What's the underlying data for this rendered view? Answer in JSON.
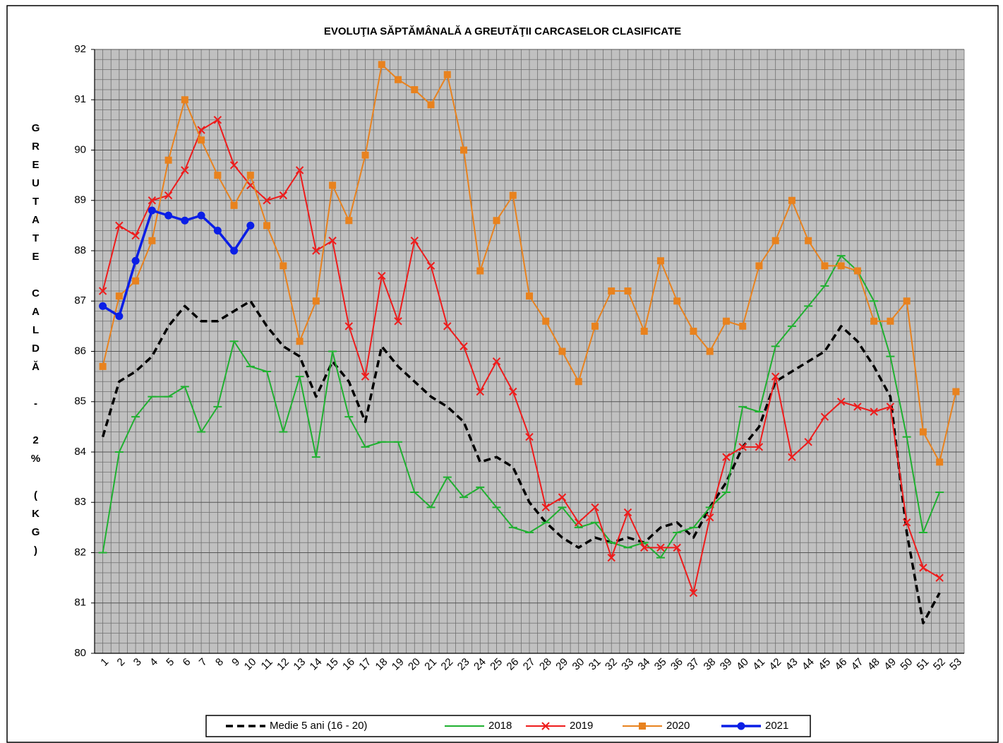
{
  "chart_data": {
    "type": "line",
    "title": "EVOLUŢIA SĂPTĂMÂNALĂ A GREUTĂŢII CARCASELOR CLASIFICATE",
    "y_label": "GREUTATE CALDĂ - 2% (KG)",
    "categories": [
      "1",
      "2",
      "3",
      "4",
      "5",
      "6",
      "7",
      "8",
      "9",
      "10",
      "11",
      "12",
      "13",
      "14",
      "15",
      "16",
      "17",
      "18",
      "19",
      "20",
      "21",
      "22",
      "23",
      "24",
      "25",
      "26",
      "27",
      "28",
      "29",
      "30",
      "31",
      "32",
      "33",
      "34",
      "35",
      "36",
      "37",
      "38",
      "39",
      "40",
      "41",
      "42",
      "43",
      "44",
      "45",
      "46",
      "47",
      "48",
      "49",
      "50",
      "51",
      "52",
      "53"
    ],
    "ylim": [
      80,
      92
    ],
    "yticks": [
      80,
      81,
      82,
      83,
      84,
      85,
      86,
      87,
      88,
      89,
      90,
      91,
      92
    ],
    "grid": true,
    "legend": "bottom",
    "series": [
      {
        "name": "Medie 5 ani (16 - 20)",
        "color": "#000000",
        "marker": "none",
        "dash": true,
        "values": [
          84.3,
          85.4,
          85.6,
          85.9,
          86.5,
          86.9,
          86.6,
          86.6,
          86.8,
          87.0,
          86.5,
          86.1,
          85.9,
          85.1,
          85.8,
          85.4,
          84.6,
          86.1,
          85.7,
          85.4,
          85.1,
          84.9,
          84.6,
          83.8,
          83.9,
          83.7,
          83.0,
          82.6,
          82.3,
          82.1,
          82.3,
          82.2,
          82.3,
          82.2,
          82.5,
          82.6,
          82.3,
          82.9,
          83.4,
          84.1,
          84.5,
          85.4,
          85.6,
          85.8,
          86.0,
          86.5,
          86.2,
          85.7,
          85.1,
          82.4,
          80.6,
          81.2,
          null
        ]
      },
      {
        "name": "2018",
        "color": "#1fb030",
        "marker": "dash",
        "dash": false,
        "values": [
          82.0,
          84.0,
          84.7,
          85.1,
          85.1,
          85.3,
          84.4,
          84.9,
          86.2,
          85.7,
          85.6,
          84.4,
          85.5,
          83.9,
          86.0,
          84.7,
          84.1,
          84.2,
          84.2,
          83.2,
          82.9,
          83.5,
          83.1,
          83.3,
          82.9,
          82.5,
          82.4,
          82.6,
          82.9,
          82.5,
          82.6,
          82.2,
          82.1,
          82.2,
          81.9,
          82.4,
          82.5,
          82.9,
          83.2,
          84.9,
          84.8,
          86.1,
          86.5,
          86.9,
          87.3,
          87.9,
          87.6,
          87.0,
          85.9,
          84.3,
          82.4,
          83.2,
          null
        ]
      },
      {
        "name": "2019",
        "color": "#ee1c1c",
        "marker": "x",
        "dash": false,
        "values": [
          87.2,
          88.5,
          88.3,
          89.0,
          89.1,
          89.6,
          90.4,
          90.6,
          89.7,
          89.3,
          89.0,
          89.1,
          89.6,
          88.0,
          88.2,
          86.5,
          85.5,
          87.5,
          86.6,
          88.2,
          87.7,
          86.5,
          86.1,
          85.2,
          85.8,
          85.2,
          84.3,
          82.9,
          83.1,
          82.6,
          82.9,
          81.9,
          82.8,
          82.1,
          82.1,
          82.1,
          81.2,
          82.7,
          83.9,
          84.1,
          84.1,
          85.5,
          83.9,
          84.2,
          84.7,
          85.0,
          84.9,
          84.8,
          84.9,
          82.6,
          81.7,
          81.5,
          null
        ]
      },
      {
        "name": "2020",
        "color": "#e8821e",
        "marker": "square",
        "dash": false,
        "values": [
          85.7,
          87.1,
          87.4,
          88.2,
          89.8,
          91.0,
          90.2,
          89.5,
          88.9,
          89.5,
          88.5,
          87.7,
          86.2,
          87.0,
          89.3,
          88.6,
          89.9,
          91.7,
          91.4,
          91.2,
          90.9,
          91.5,
          90.0,
          87.6,
          88.6,
          89.1,
          87.1,
          86.6,
          86.0,
          85.4,
          86.5,
          87.2,
          87.2,
          86.4,
          87.8,
          87.0,
          86.4,
          86.0,
          86.6,
          86.5,
          87.7,
          88.2,
          89.0,
          88.2,
          87.7,
          87.7,
          87.6,
          86.6,
          86.6,
          87.0,
          84.4,
          83.8,
          85.2
        ]
      },
      {
        "name": "2021",
        "color": "#0a1ee6",
        "marker": "circle",
        "dash": false,
        "values": [
          86.9,
          86.7,
          87.8,
          88.8,
          88.7,
          88.6,
          88.7,
          88.4,
          88.0,
          88.5,
          null,
          null,
          null,
          null,
          null,
          null,
          null,
          null,
          null,
          null,
          null,
          null,
          null,
          null,
          null,
          null,
          null,
          null,
          null,
          null,
          null,
          null,
          null,
          null,
          null,
          null,
          null,
          null,
          null,
          null,
          null,
          null,
          null,
          null,
          null,
          null,
          null,
          null,
          null,
          null,
          null,
          null,
          null
        ]
      }
    ]
  }
}
